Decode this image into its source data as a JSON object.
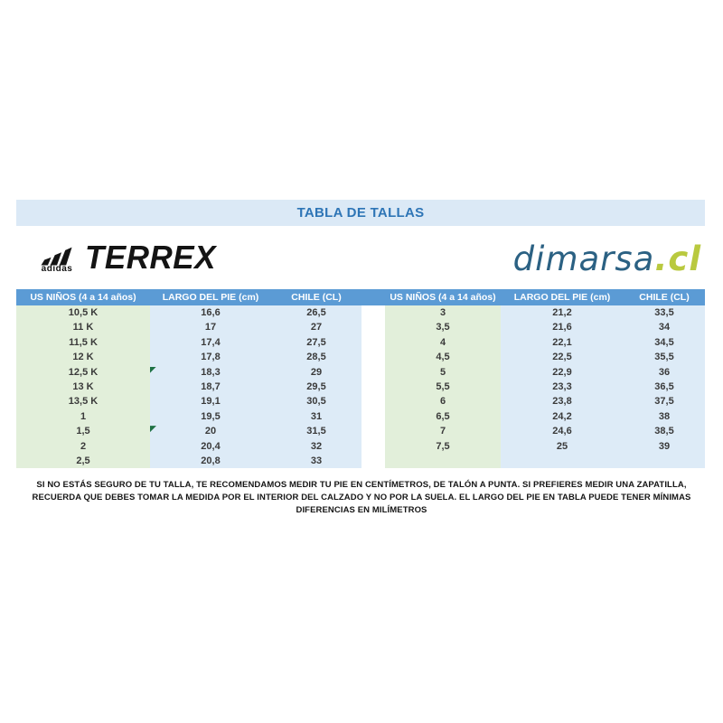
{
  "header": {
    "title": "TABLA DE TALLAS"
  },
  "brands": {
    "adidas_word": "adidas",
    "terrex_word": "TERREX",
    "dimarsa_word": "dimarsa",
    "dimarsa_tld": ".cl"
  },
  "table": {
    "column_headers": [
      "US NIÑOS (4 a 14 años)",
      "LARGO DEL PIE (cm)",
      "CHILE (CL)",
      "US NIÑOS (4 a 14 años)",
      "LARGO DEL PIE (cm)",
      "CHILE (CL)"
    ],
    "left_rows": [
      [
        "10,5 K",
        "16,6",
        "26,5"
      ],
      [
        "11 K",
        "17",
        "27"
      ],
      [
        "11,5 K",
        "17,4",
        "27,5"
      ],
      [
        "12 K",
        "17,8",
        "28,5"
      ],
      [
        "12,5 K",
        "18,3",
        "29"
      ],
      [
        "13 K",
        "18,7",
        "29,5"
      ],
      [
        "13,5 K",
        "19,1",
        "30,5"
      ],
      [
        "1",
        "19,5",
        "31"
      ],
      [
        "1,5",
        "20",
        "31,5"
      ],
      [
        "2",
        "20,4",
        "32"
      ],
      [
        "2,5",
        "20,8",
        "33"
      ]
    ],
    "right_rows": [
      [
        "3",
        "21,2",
        "33,5"
      ],
      [
        "3,5",
        "21,6",
        "34"
      ],
      [
        "4",
        "22,1",
        "34,5"
      ],
      [
        "4,5",
        "22,5",
        "35,5"
      ],
      [
        "5",
        "22,9",
        "36"
      ],
      [
        "5,5",
        "23,3",
        "36,5"
      ],
      [
        "6",
        "23,8",
        "37,5"
      ],
      [
        "6,5",
        "24,2",
        "38"
      ],
      [
        "7",
        "24,6",
        "38,5"
      ],
      [
        "7,5",
        "25",
        "39"
      ]
    ],
    "right_trailing_empty_rows": 1,
    "comment_marker_left_row_indexes": [
      4,
      8
    ]
  },
  "footer": {
    "note": "SI NO ESTÁS SEGURO DE TU TALLA, TE RECOMENDAMOS MEDIR TU PIE EN CENTÍMETROS, DE TALÓN A PUNTA. SI PREFIERES MEDIR UNA ZAPATILLA, RECUERDA QUE DEBES TOMAR LA MEDIDA POR EL INTERIOR DEL CALZADO Y NO POR LA SUELA. EL LARGO DEL PIE EN TABLA PUEDE TENER MÍNIMAS DIFERENCIAS EN MILÍMETROS"
  },
  "colors": {
    "title_bar_bg": "#dbe9f6",
    "title_text": "#2e75b6",
    "table_header_bg": "#5b9bd5",
    "table_header_text": "#ffffff",
    "us_size_column_bg": "#e2efda",
    "cm_cl_column_bg": "#ddebf7",
    "comment_marker": "#1e7145",
    "dimarsa_blue": "#2b6183",
    "dimarsa_green": "#b9c93f"
  }
}
